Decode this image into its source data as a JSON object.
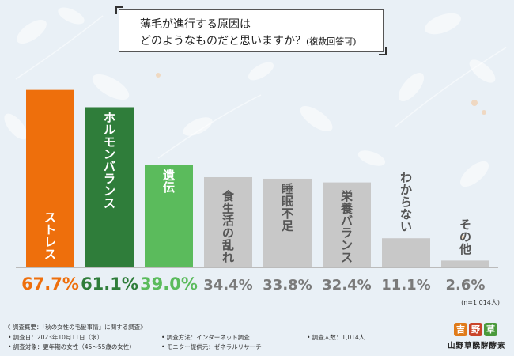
{
  "title": {
    "line1": "薄毛が進行する原因は",
    "line2": "どのようなものだと思いますか？",
    "line2_suffix": "(複数回答可)"
  },
  "chart_data": {
    "type": "bar",
    "categories": [
      "ストレス",
      "ホルモンバランス",
      "遺伝",
      "食生活の乱れ",
      "睡眠不足",
      "栄養バランス",
      "わからない",
      "その他"
    ],
    "values": [
      67.7,
      61.1,
      39.0,
      34.4,
      33.8,
      32.4,
      11.1,
      2.6
    ],
    "value_labels": [
      "67.7%",
      "61.1%",
      "39.0%",
      "34.4%",
      "33.8%",
      "32.4%",
      "11.1%",
      "2.6%"
    ],
    "colors": [
      "#ee6f0c",
      "#2f7d3a",
      "#5bbb5c",
      "#c8c8c8",
      "#c8c8c8",
      "#c8c8c8",
      "#c8c8c8",
      "#c8c8c8"
    ],
    "label_colors": [
      "#ee6f0c",
      "#2f7d3a",
      "#5bbb5c",
      "#7a7a7a",
      "#7a7a7a",
      "#7a7a7a",
      "#7a7a7a",
      "#7a7a7a"
    ],
    "ylim": [
      0,
      70
    ]
  },
  "note": "(n=1,014人)",
  "footer": {
    "f1": "《 調査概要：「秋の女性の毛髪事情」に関する調査》",
    "f2": "• 調査日：2023年10月11日（水）",
    "f3": "• 調査対象：更年期の女性（45～55歳の女性）",
    "f4": "• 調査方法：インターネット調査",
    "f5": "• モニター提供元：ゼネラルリサーチ",
    "f6": "• 調査人数：1,014人"
  },
  "logo": {
    "icons": [
      "吉",
      "野",
      "草"
    ],
    "text": "山野草醗酵酵素"
  }
}
